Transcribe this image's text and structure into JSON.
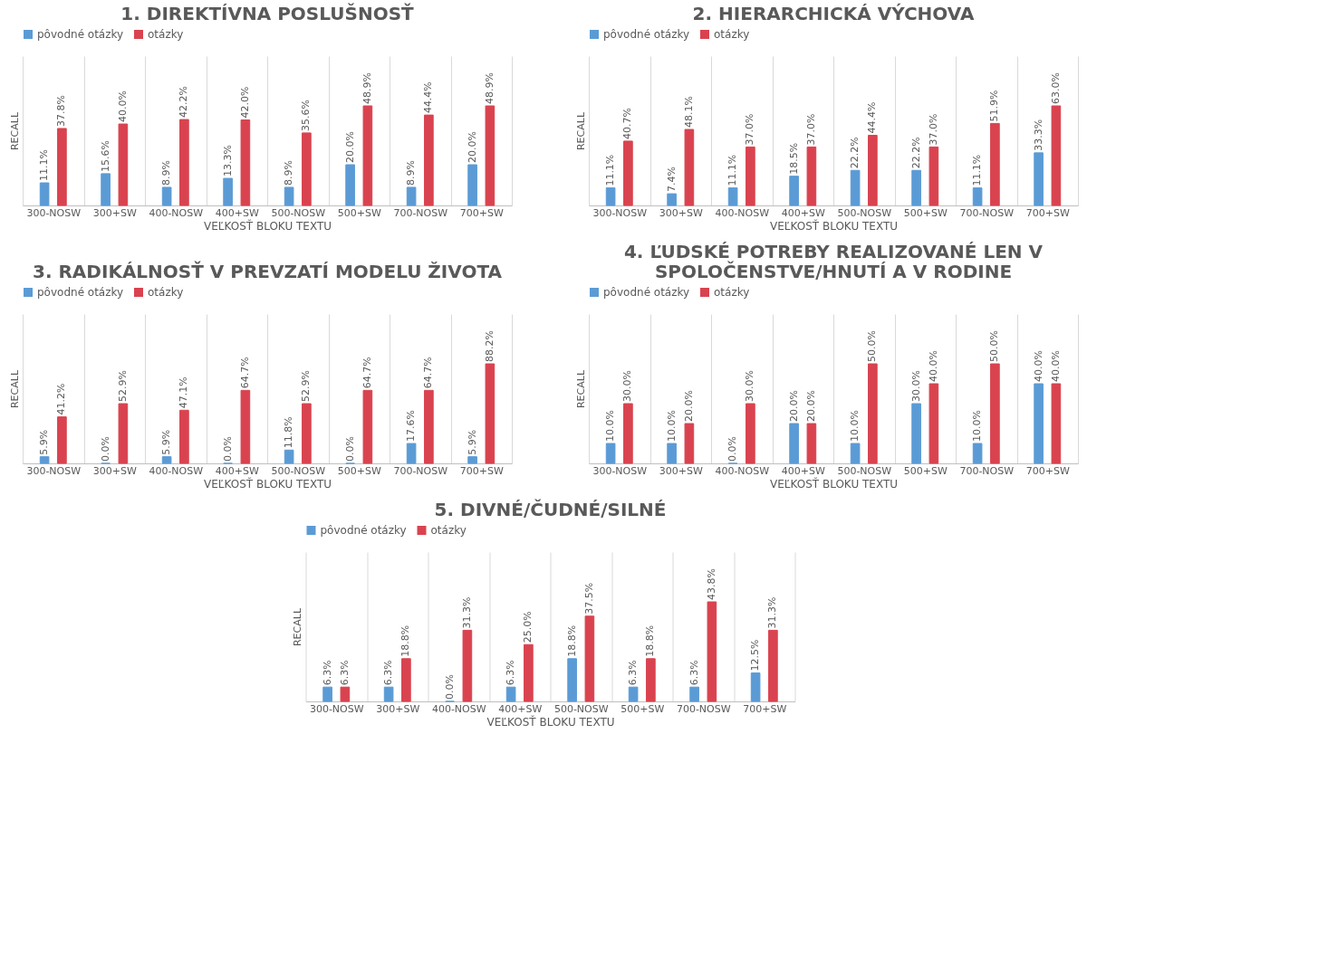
{
  "chart_data": [
    {
      "type": "bar",
      "title": "1. DIREKTÍVNA POSLUŠNOSŤ",
      "xlabel": "VEĽKOSŤ BLOKU TEXTU",
      "ylabel": "RECALL",
      "legend": "top",
      "grid": "x",
      "categories": [
        "300-NOSW",
        "300+SW",
        "400-NOSW",
        "400+SW",
        "500-NOSW",
        "500+SW",
        "700-NOSW",
        "700+SW"
      ],
      "series": [
        {
          "name": "pôvodné otázky",
          "color": "#5b9bd5",
          "values": [
            11.1,
            15.6,
            8.9,
            13.3,
            8.9,
            20.0,
            8.9,
            20.0
          ],
          "value_labels": [
            "11.1%",
            "15.6%",
            "8.9%",
            "13.3%",
            "8.9%",
            "20.0%",
            "8.9%",
            "20.0%"
          ]
        },
        {
          "name": "otázky",
          "color": "#d9434f",
          "values": [
            37.8,
            40.0,
            42.2,
            42.0,
            35.6,
            48.9,
            44.4,
            48.9
          ],
          "value_labels": [
            "37.8%",
            "40.0%",
            "42.2%",
            "42.0%",
            "35.6%",
            "48.9%",
            "44.4%",
            "48.9%"
          ]
        }
      ]
    },
    {
      "type": "bar",
      "title": "2. HIERARCHICKÁ VÝCHOVA",
      "xlabel": "VEĽKOSŤ BLOKU TEXTU",
      "ylabel": "RECALL",
      "legend": "top",
      "grid": "x",
      "categories": [
        "300-NOSW",
        "300+SW",
        "400-NOSW",
        "400+SW",
        "500-NOSW",
        "500+SW",
        "700-NOSW",
        "700+SW"
      ],
      "series": [
        {
          "name": "pôvodné otázky",
          "color": "#5b9bd5",
          "values": [
            11.1,
            7.4,
            11.1,
            18.5,
            22.2,
            22.2,
            11.1,
            33.3
          ],
          "value_labels": [
            "11.1%",
            "7.4%",
            "11.1%",
            "18.5%",
            "22.2%",
            "22.2%",
            "11.1%",
            "33.3%"
          ]
        },
        {
          "name": "otázky",
          "color": "#d9434f",
          "values": [
            40.7,
            48.1,
            37.0,
            37.0,
            44.4,
            37.0,
            51.9,
            63.0
          ],
          "value_labels": [
            "40.7%",
            "48.1%",
            "37.0%",
            "37.0%",
            "44.4%",
            "37.0%",
            "51.9%",
            "63.0%"
          ]
        }
      ]
    },
    {
      "type": "bar",
      "title": "3. RADIKÁLNOSŤ V PREVZATÍ MODELU ŽIVOTA",
      "xlabel": "VEĽKOSŤ BLOKU TEXTU",
      "ylabel": "RECALL",
      "legend": "top",
      "grid": "x",
      "categories": [
        "300-NOSW",
        "300+SW",
        "400-NOSW",
        "400+SW",
        "500-NOSW",
        "500+SW",
        "700-NOSW",
        "700+SW"
      ],
      "series": [
        {
          "name": "pôvodné otázky",
          "color": "#5b9bd5",
          "values": [
            5.9,
            0.0,
            5.9,
            0.0,
            11.8,
            0.0,
            17.6,
            5.9
          ],
          "value_labels": [
            "5.9%",
            "0.0%",
            "5.9%",
            "0.0%",
            "11.8%",
            "0.0%",
            "17.6%",
            "5.9%"
          ]
        },
        {
          "name": "otázky",
          "color": "#d9434f",
          "values": [
            41.2,
            52.9,
            47.1,
            64.7,
            52.9,
            64.7,
            64.7,
            88.2
          ],
          "value_labels": [
            "41.2%",
            "52.9%",
            "47.1%",
            "64.7%",
            "52.9%",
            "64.7%",
            "64.7%",
            "88.2%"
          ]
        }
      ]
    },
    {
      "type": "bar",
      "title": "4. ĽUDSKÉ POTREBY REALIZOVANÉ LEN V SPOLOČENSTVE/HNUTÍ A V RODINE",
      "xlabel": "VEĽKOSŤ BLOKU TEXTU",
      "ylabel": "RECALL",
      "legend": "top",
      "grid": "x",
      "categories": [
        "300-NOSW",
        "300+SW",
        "400-NOSW",
        "400+SW",
        "500-NOSW",
        "500+SW",
        "700-NOSW",
        "700+SW"
      ],
      "series": [
        {
          "name": "pôvodné otázky",
          "color": "#5b9bd5",
          "values": [
            10.0,
            10.0,
            0.0,
            20.0,
            10.0,
            30.0,
            10.0,
            40.0
          ],
          "value_labels": [
            "10.0%",
            "10.0%",
            "0.0%",
            "20.0%",
            "10.0%",
            "30.0%",
            "10.0%",
            "40.0%"
          ]
        },
        {
          "name": "otázky",
          "color": "#d9434f",
          "values": [
            30.0,
            20.0,
            30.0,
            20.0,
            50.0,
            40.0,
            50.0,
            40.0
          ],
          "value_labels": [
            "30.0%",
            "20.0%",
            "30.0%",
            "20.0%",
            "50.0%",
            "40.0%",
            "50.0%",
            "40.0%"
          ]
        }
      ]
    },
    {
      "type": "bar",
      "title": "5. DIVNÉ/ČUDNÉ/SILNÉ",
      "xlabel": "VEĽKOSŤ BLOKU TEXTU",
      "ylabel": "RECALL",
      "legend": "top",
      "grid": "x",
      "categories": [
        "300-NOSW",
        "300+SW",
        "400-NOSW",
        "400+SW",
        "500-NOSW",
        "500+SW",
        "700-NOSW",
        "700+SW"
      ],
      "series": [
        {
          "name": "pôvodné otázky",
          "color": "#5b9bd5",
          "values": [
            6.3,
            6.3,
            0.0,
            6.3,
            18.8,
            6.3,
            6.3,
            12.5
          ],
          "value_labels": [
            "6.3%",
            "6.3%",
            "0.0%",
            "6.3%",
            "18.8%",
            "6.3%",
            "6.3%",
            "12.5%"
          ]
        },
        {
          "name": "otázky",
          "color": "#d9434f",
          "values": [
            6.3,
            18.8,
            31.3,
            25.0,
            37.5,
            18.8,
            43.8,
            31.3
          ],
          "value_labels": [
            "6.3%",
            "18.8%",
            "31.3%",
            "25.0%",
            "37.5%",
            "18.8%",
            "43.8%",
            "31.3%"
          ]
        }
      ]
    }
  ]
}
